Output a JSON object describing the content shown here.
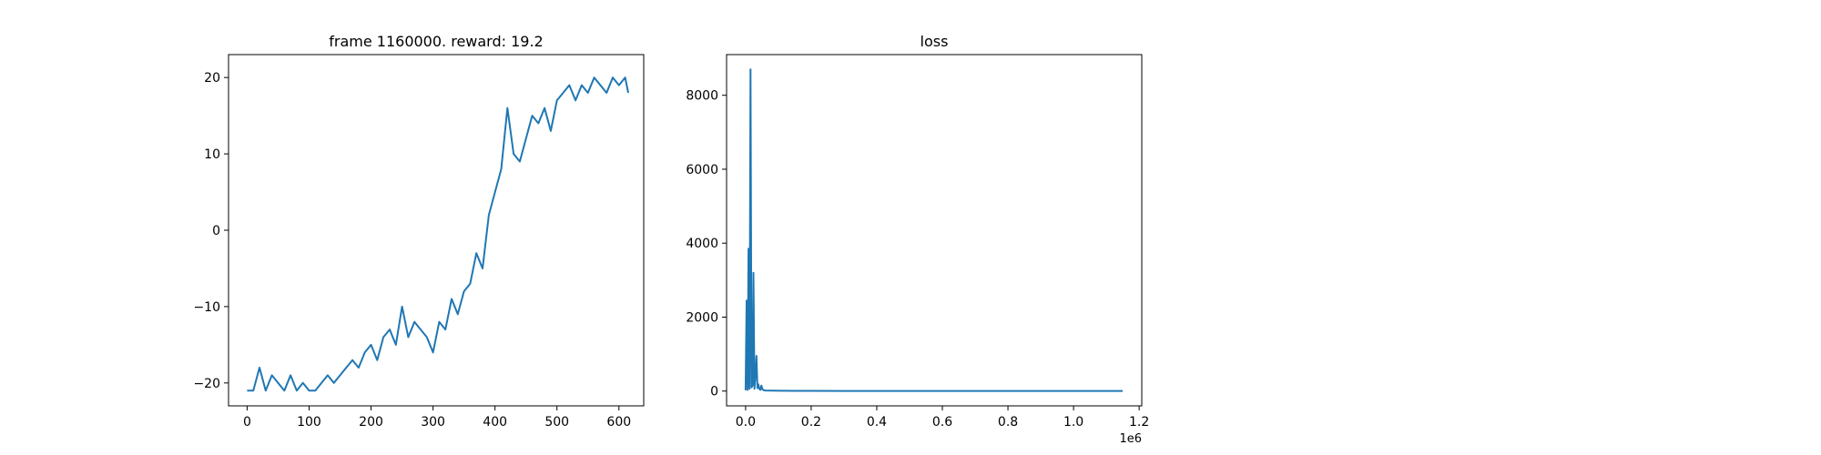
{
  "chart_data": [
    {
      "type": "line",
      "title": "frame 1160000. reward: 19.2",
      "xlabel": "",
      "ylabel": "",
      "xlim": [
        -30,
        640
      ],
      "ylim": [
        -23,
        23
      ],
      "xticks": [
        0,
        100,
        200,
        300,
        400,
        500,
        600
      ],
      "xtick_labels": [
        "0",
        "100",
        "200",
        "300",
        "400",
        "500",
        "600"
      ],
      "yticks": [
        -20,
        -10,
        0,
        10,
        20
      ],
      "ytick_labels": [
        "−20",
        "−10",
        "0",
        "10",
        "20"
      ],
      "grid": false,
      "line_color": "#1f77b4",
      "series": [
        {
          "x": [
            0,
            10,
            20,
            30,
            40,
            50,
            60,
            70,
            80,
            90,
            100,
            110,
            120,
            130,
            140,
            150,
            160,
            170,
            180,
            190,
            200,
            210,
            220,
            230,
            240,
            250,
            260,
            270,
            280,
            290,
            300,
            310,
            320,
            330,
            340,
            350,
            360,
            370,
            380,
            390,
            400,
            410,
            420,
            430,
            440,
            450,
            460,
            470,
            480,
            490,
            500,
            510,
            520,
            530,
            540,
            550,
            560,
            570,
            580,
            590,
            600,
            610,
            615
          ],
          "y": [
            -21,
            -21,
            -18,
            -21,
            -19,
            -20,
            -21,
            -19,
            -21,
            -20,
            -21,
            -21,
            -20,
            -19,
            -20,
            -19,
            -18,
            -17,
            -18,
            -16,
            -15,
            -17,
            -14,
            -13,
            -15,
            -10,
            -14,
            -12,
            -13,
            -14,
            -16,
            -12,
            -13,
            -9,
            -11,
            -8,
            -7,
            -3,
            -5,
            2,
            5,
            8,
            16,
            10,
            9,
            12,
            15,
            14,
            16,
            13,
            17,
            18,
            19,
            17,
            19,
            18,
            20,
            19,
            18,
            20,
            19,
            20,
            18
          ]
        }
      ]
    },
    {
      "type": "line",
      "title": "loss",
      "xlabel": "",
      "ylabel": "",
      "xlim": [
        -58000,
        1208000
      ],
      "ylim": [
        -400,
        9100
      ],
      "xticks": [
        0,
        200000,
        400000,
        600000,
        800000,
        1000000,
        1200000
      ],
      "xtick_labels": [
        "0.0",
        "0.2",
        "0.4",
        "0.6",
        "0.8",
        "1.0",
        "1.2"
      ],
      "x_offset_label": "1e6",
      "yticks": [
        0,
        2000,
        4000,
        6000,
        8000
      ],
      "ytick_labels": [
        "0",
        "2000",
        "4000",
        "6000",
        "8000"
      ],
      "grid": false,
      "line_color": "#1f77b4",
      "series": [
        {
          "x": [
            0,
            3000,
            6000,
            9000,
            12000,
            15000,
            18000,
            21000,
            24000,
            27000,
            30000,
            33000,
            36000,
            39000,
            42000,
            45000,
            48000,
            52000,
            56000,
            60000,
            80000,
            100000,
            150000,
            200000,
            300000,
            400000,
            500000,
            600000,
            700000,
            800000,
            900000,
            1000000,
            1100000,
            1150000
          ],
          "y": [
            20,
            2450,
            30,
            3850,
            60,
            8700,
            100,
            150,
            3200,
            60,
            400,
            950,
            80,
            180,
            60,
            30,
            150,
            40,
            20,
            15,
            10,
            8,
            6,
            5,
            4,
            4,
            3,
            3,
            3,
            3,
            3,
            3,
            3,
            3
          ]
        }
      ]
    }
  ]
}
